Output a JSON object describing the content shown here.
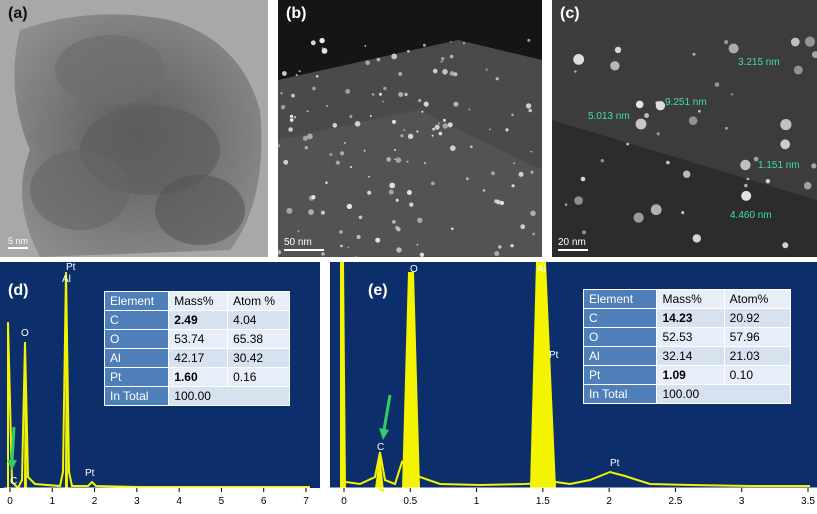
{
  "panels": {
    "a": {
      "label": "(a)",
      "scale": "5 nm"
    },
    "b": {
      "label": "(b)",
      "scale": "50 nm"
    },
    "c": {
      "label": "(c)",
      "scale": "20 nm",
      "measurements": [
        "3.215 nm",
        "9.251 nm",
        "5.013 nm",
        "1.151 nm",
        "4.460 nm"
      ]
    },
    "d": {
      "label": "(d)",
      "peaks": [
        "O",
        "Pt",
        "Al",
        "Pt",
        "C"
      ],
      "xticks": [
        "0",
        "1",
        "2",
        "3",
        "4",
        "5",
        "6",
        "7"
      ],
      "table": {
        "headers": [
          "Element",
          "Mass%",
          "Atom %"
        ],
        "rows": [
          {
            "el": "C",
            "mass": "2.49",
            "atom": "4.04"
          },
          {
            "el": "O",
            "mass": "53.74",
            "atom": "65.38"
          },
          {
            "el": "Al",
            "mass": "42.17",
            "atom": "30.42"
          },
          {
            "el": "Pt",
            "mass": "1.60",
            "atom": "0.16"
          },
          {
            "el": "In Total",
            "mass": "100.00",
            "atom": ""
          }
        ]
      }
    },
    "e": {
      "label": "(e)",
      "peaks": [
        "O",
        "Al",
        "Pt",
        "C",
        "Pt"
      ],
      "xticks": [
        "0",
        "0.5",
        "1",
        "1.5",
        "2",
        "2.5",
        "3",
        "3.5"
      ],
      "table": {
        "headers": [
          "Element",
          "Mass%",
          "Atom%"
        ],
        "rows": [
          {
            "el": "C",
            "mass": "14.23",
            "atom": "20.92"
          },
          {
            "el": "O",
            "mass": "52.53",
            "atom": "57.96"
          },
          {
            "el": "Al",
            "mass": "32.14",
            "atom": "21.03"
          },
          {
            "el": "Pt",
            "mass": "1.09",
            "atom": "0.10"
          },
          {
            "el": "In Total",
            "mass": "100.00",
            "atom": ""
          }
        ]
      }
    }
  },
  "colors": {
    "spectrum": "#f4f400",
    "plot_bg": "#0c2f6b",
    "arrow": "#33cc66",
    "table_header": "#4e7fb8"
  }
}
